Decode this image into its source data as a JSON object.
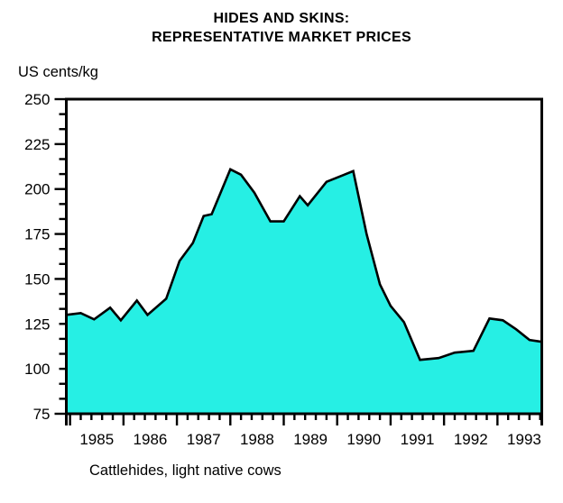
{
  "title": {
    "line1": "HIDES AND SKINS:",
    "line2": "REPRESENTATIVE MARKET PRICES"
  },
  "chart_data": {
    "type": "area",
    "title": "HIDES AND SKINS: REPRESENTATIVE MARKET PRICES",
    "unit_label": "US cents/kg",
    "caption": "Cattlehides, light native cows",
    "xlabel": "",
    "ylabel": "US cents/kg",
    "x_axis": {
      "min": 1984.93,
      "max": 1993.83,
      "year_tick_values": [
        1985,
        1986,
        1987,
        1988,
        1989,
        1990,
        1991,
        1992,
        1993
      ],
      "year_labels": [
        "1985",
        "1986",
        "1987",
        "1988",
        "1989",
        "1990",
        "1991",
        "1992",
        "1993"
      ],
      "minor_step": 0.2
    },
    "y_axis": {
      "min": 75,
      "max": 250,
      "major_interval": 25,
      "minors_between_majors": 2,
      "tick_labels": [
        "250",
        "225",
        "200",
        "175",
        "150",
        "125",
        "100",
        "75"
      ]
    },
    "ylim": [
      75,
      250
    ],
    "grid": false,
    "legend": "none",
    "series": [
      {
        "name": "Cattlehides, light native cows",
        "points": [
          [
            1984.93,
            130
          ],
          [
            1985.2,
            131
          ],
          [
            1985.45,
            127.5
          ],
          [
            1985.75,
            134
          ],
          [
            1985.95,
            127
          ],
          [
            1986.25,
            138
          ],
          [
            1986.45,
            130
          ],
          [
            1986.8,
            139
          ],
          [
            1987.05,
            160
          ],
          [
            1987.3,
            170
          ],
          [
            1987.5,
            185
          ],
          [
            1987.65,
            186
          ],
          [
            1988.0,
            211
          ],
          [
            1988.2,
            208
          ],
          [
            1988.45,
            198
          ],
          [
            1988.75,
            182
          ],
          [
            1989.0,
            182
          ],
          [
            1989.3,
            196
          ],
          [
            1989.45,
            191
          ],
          [
            1989.8,
            204
          ],
          [
            1990.3,
            210
          ],
          [
            1990.55,
            175
          ],
          [
            1990.8,
            147
          ],
          [
            1991.0,
            135
          ],
          [
            1991.25,
            126
          ],
          [
            1991.55,
            105
          ],
          [
            1991.9,
            106
          ],
          [
            1992.2,
            109
          ],
          [
            1992.55,
            110
          ],
          [
            1992.85,
            128
          ],
          [
            1993.1,
            127
          ],
          [
            1993.35,
            122
          ],
          [
            1993.6,
            116
          ],
          [
            1993.83,
            115
          ]
        ]
      }
    ],
    "colors": {
      "area_fill": "#26EFE4",
      "line": "#000000",
      "axis": "#000000",
      "text": "#000000",
      "background": "#FFFFFF"
    }
  }
}
